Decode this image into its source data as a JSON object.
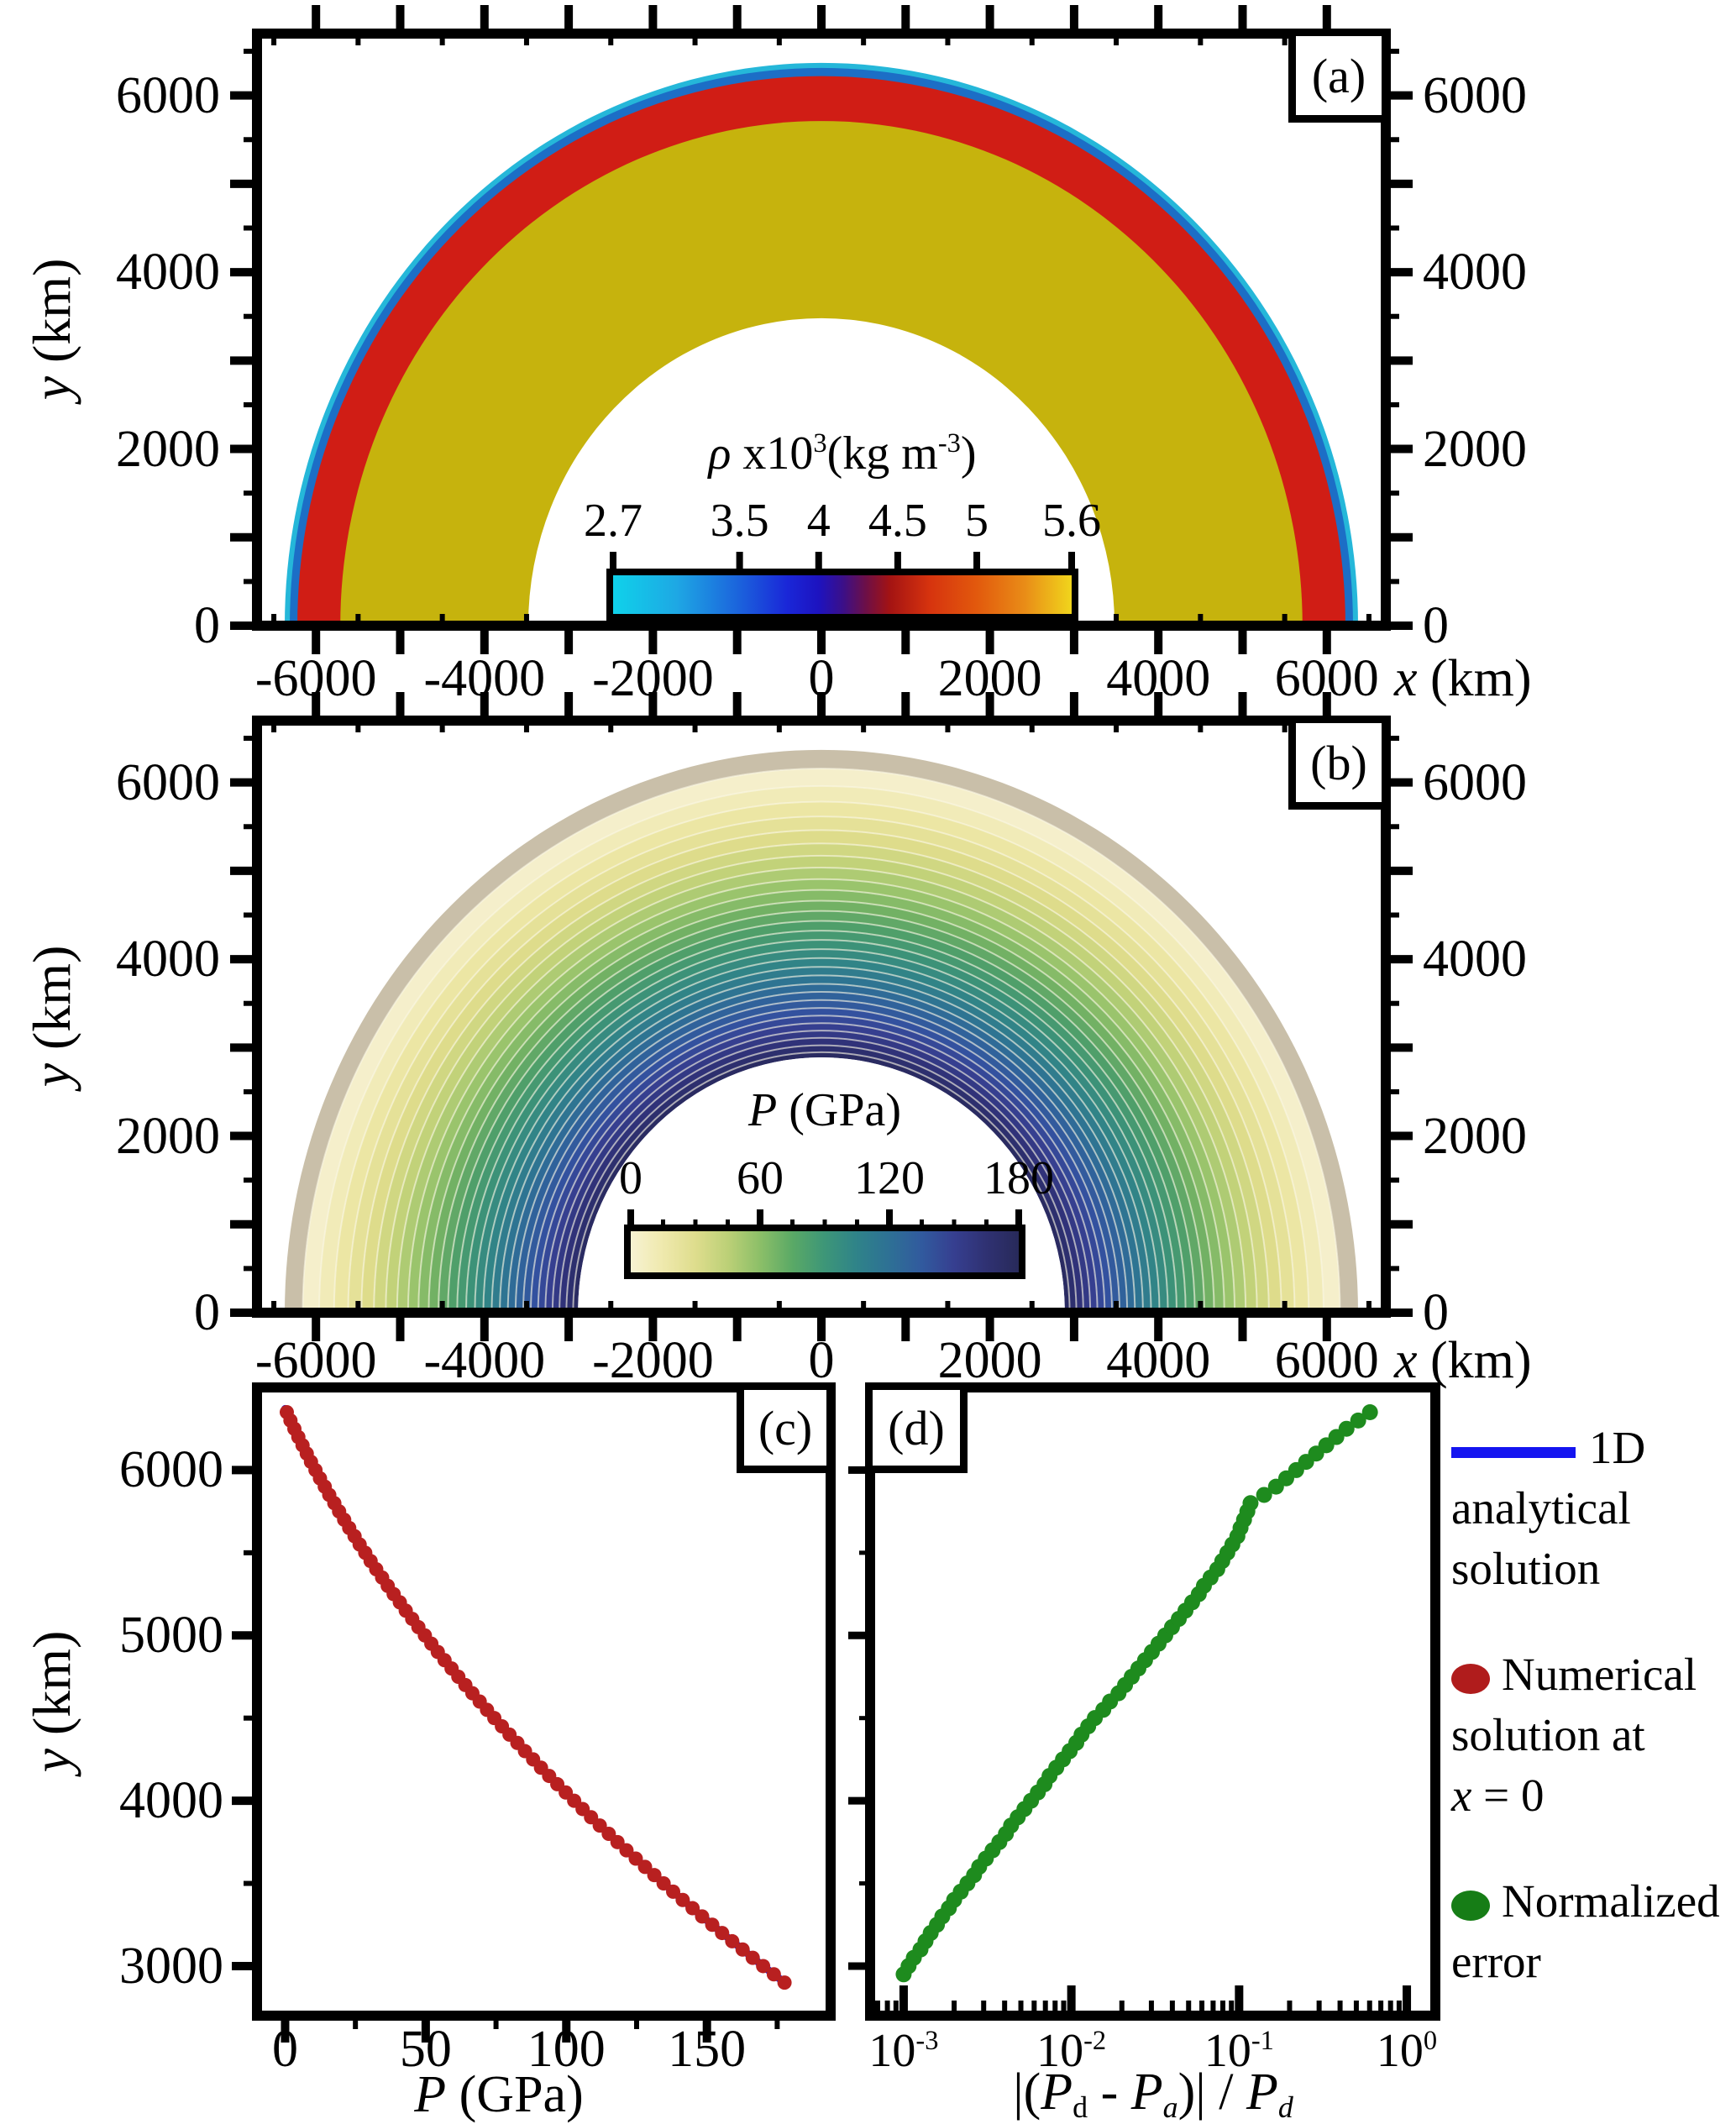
{
  "figure": {
    "bg": "#ffffff",
    "ink": "#000000"
  },
  "panel_a": {
    "label": "(a)",
    "ylabel": [
      [
        "y",
        "i"
      ],
      [
        " (km)",
        "n"
      ]
    ],
    "xlabel": [
      [
        "x",
        "i"
      ],
      [
        " (km)",
        "n"
      ]
    ],
    "x_ticks": {
      "label_values": [
        -6000,
        -4000,
        -2000,
        0,
        2000,
        4000,
        6000
      ],
      "labels": [
        "-6000",
        "-4000",
        "-2000",
        "0",
        "2000",
        "4000",
        "6000"
      ]
    },
    "y_ticks": {
      "label_values": [
        0,
        2000,
        4000,
        6000
      ],
      "labels": [
        "0",
        "2000",
        "4000",
        "6000"
      ]
    },
    "colorbar": {
      "title": [
        [
          "ρ",
          "i"
        ],
        [
          " x10",
          "n"
        ],
        [
          "3",
          "sup"
        ],
        [
          "(kg m",
          "n"
        ],
        [
          "-3",
          "sup"
        ],
        [
          ")",
          "n"
        ]
      ],
      "min": 2.7,
      "max": 5.6,
      "tick_values": [
        2.7,
        3.5,
        4,
        4.5,
        5,
        5.6
      ],
      "tick_labels": [
        "2.7",
        "3.5",
        "4",
        "4.5",
        "5",
        "5.6"
      ],
      "gradient": [
        [
          0,
          "#0fd2ea"
        ],
        [
          13.8,
          "#1ea8e4"
        ],
        [
          27.6,
          "#1b62dc"
        ],
        [
          37.9,
          "#1a27d8"
        ],
        [
          44.8,
          "#1d13c0"
        ],
        [
          50,
          "#3a0f8a"
        ],
        [
          55.2,
          "#6e0f46"
        ],
        [
          60.3,
          "#a31313"
        ],
        [
          69,
          "#d6330e"
        ],
        [
          79.3,
          "#e2590d"
        ],
        [
          89.7,
          "#e98c17"
        ],
        [
          100,
          "#f0d51c"
        ]
      ]
    },
    "layers": [
      {
        "density": 2.7,
        "r_outer": 6371,
        "r_inner": 6311,
        "color": "#25b7d9"
      },
      {
        "density": 3.5,
        "r_outer": 6311,
        "r_inner": 6221,
        "color": "#1c6ec6"
      },
      {
        "density": 4.5,
        "r_outer": 6221,
        "r_inner": 5711,
        "color": "#d01d15"
      },
      {
        "density": 5.6,
        "r_outer": 5711,
        "r_inner": 3480,
        "color": "#c6b30d"
      }
    ]
  },
  "panel_b": {
    "label": "(b)",
    "ylabel": [
      [
        "y",
        "i"
      ],
      [
        " (km)",
        "n"
      ]
    ],
    "xlabel": [
      [
        "x",
        "i"
      ],
      [
        " (km)",
        "n"
      ]
    ],
    "x_ticks": {
      "label_values": [
        -6000,
        -4000,
        -2000,
        0,
        2000,
        4000,
        6000
      ],
      "labels": [
        "-6000",
        "-4000",
        "-2000",
        "0",
        "2000",
        "4000",
        "6000"
      ]
    },
    "y_ticks": {
      "label_values": [
        0,
        2000,
        4000,
        6000
      ],
      "labels": [
        "0",
        "2000",
        "4000",
        "6000"
      ]
    },
    "colorbar": {
      "title": [
        [
          "P",
          "i"
        ],
        [
          " (GPa)",
          "n"
        ]
      ],
      "min": 0,
      "max": 180,
      "minor_step": 15,
      "tick_values": [
        0,
        60,
        120,
        180
      ],
      "tick_labels": [
        "0",
        "60",
        "120",
        "180"
      ],
      "gradient": [
        [
          0,
          "#f7f2d2"
        ],
        [
          8.3,
          "#efe9ad"
        ],
        [
          16.7,
          "#dedd8d"
        ],
        [
          25,
          "#bcd077"
        ],
        [
          33.3,
          "#8cbf68"
        ],
        [
          41.7,
          "#5aa966"
        ],
        [
          50,
          "#3d9678"
        ],
        [
          58.3,
          "#2f8389"
        ],
        [
          66.7,
          "#2e7095"
        ],
        [
          75,
          "#315a9e"
        ],
        [
          83.3,
          "#363f90"
        ],
        [
          91.7,
          "#2f3172"
        ],
        [
          100,
          "#282a5a"
        ]
      ]
    },
    "r_outer": 6371,
    "r_inner": 2890,
    "contour_interval": 6,
    "contour_line_color": "rgba(250,246,228,0.6)",
    "band_colors": [
      [
        0,
        "#c9bfa9"
      ],
      [
        6,
        "#f5efcb"
      ],
      [
        18,
        "#ece6a4"
      ],
      [
        30,
        "#dedc8b"
      ],
      [
        42,
        "#c2d279"
      ],
      [
        54,
        "#9ac46c"
      ],
      [
        66,
        "#72b164"
      ],
      [
        78,
        "#4f9f6a"
      ],
      [
        90,
        "#3c9278"
      ],
      [
        102,
        "#318487"
      ],
      [
        114,
        "#2e7492"
      ],
      [
        126,
        "#30629b"
      ],
      [
        138,
        "#33519f"
      ],
      [
        150,
        "#363f90"
      ],
      [
        162,
        "#303279"
      ],
      [
        174,
        "#2a2b62"
      ],
      [
        180,
        "#272a58"
      ]
    ]
  },
  "panel_c": {
    "label": "(c)",
    "ylabel": [
      [
        "y",
        "i"
      ],
      [
        " (km)",
        "n"
      ]
    ],
    "xlabel": [
      [
        "P",
        "i"
      ],
      [
        " (GPa)",
        "n"
      ]
    ],
    "x_ticks": {
      "label_values": [
        0,
        50,
        100,
        150
      ],
      "labels": [
        "0",
        "50",
        "100",
        "150"
      ],
      "minor_values": [
        25,
        75,
        125,
        175
      ]
    },
    "y_ticks": {
      "label_values": [
        3000,
        4000,
        5000,
        6000
      ],
      "labels": [
        "3000",
        "4000",
        "5000",
        "6000"
      ],
      "minor_values": [
        3500,
        4500,
        5500
      ]
    },
    "line_color": "#1515e0",
    "dot_color": "#b82020"
  },
  "panel_d": {
    "label": "(d)",
    "xlabel": [
      [
        "|(",
        "n"
      ],
      [
        "P",
        "i"
      ],
      [
        "d",
        "sub"
      ],
      [
        " - ",
        "n"
      ],
      [
        "P",
        "i"
      ],
      [
        "a",
        "isub"
      ],
      [
        ")| / ",
        "n"
      ],
      [
        "P",
        "i"
      ],
      [
        "d",
        "isub"
      ]
    ],
    "x_ticks": {
      "exponents": [
        -3,
        -2,
        -1,
        0
      ]
    },
    "y_ticks": {
      "major_values": [
        3000,
        4000,
        5000,
        6000
      ],
      "minor_values": [
        3500,
        4500,
        5500
      ]
    },
    "dot_color": "#1e8b1e"
  },
  "legend": {
    "items": [
      {
        "marker": "line",
        "color": "#1414f0",
        "line_texts": [
          "1D",
          "analytical",
          "solution"
        ]
      },
      {
        "marker": "dot",
        "color": "#b01c1c",
        "line_texts": [
          "Numerical",
          "solution at"
        ],
        "last_line": [
          [
            "x",
            "i"
          ],
          [
            " = 0",
            "n"
          ]
        ]
      },
      {
        "marker": "dot",
        "color": "#167d16",
        "line_texts": [
          "Normalized",
          "error"
        ]
      }
    ]
  },
  "chart_data": [
    {
      "id": "a",
      "type": "heatmap",
      "title": "rho x10^3 (kg m^-3)",
      "colorbar_ticks": [
        2.7,
        3.5,
        4,
        4.5,
        5,
        5.6
      ],
      "rings_density_router_rinner": [
        [
          2.7,
          6371,
          6311
        ],
        [
          3.5,
          6311,
          6221
        ],
        [
          4.5,
          6221,
          5711
        ],
        [
          5.6,
          5711,
          3480
        ]
      ]
    },
    {
      "id": "b",
      "type": "heatmap",
      "title": "P (GPa)",
      "range": [
        0,
        180
      ],
      "contour_interval": 6,
      "annulus_r": [
        2890,
        6371
      ],
      "contour_levels": [
        0,
        6,
        12,
        18,
        24,
        30,
        36,
        42,
        48,
        54,
        60,
        66,
        72,
        78,
        84,
        90,
        96,
        102,
        108,
        114,
        120,
        126,
        132,
        138,
        144,
        150,
        156,
        162,
        168,
        174,
        180
      ]
    },
    {
      "id": "c",
      "type": "line+scatter",
      "xlabel": "P (GPa)",
      "ylabel": "y (km)",
      "xlim": [
        -10,
        194
      ],
      "ylim": [
        2700,
        6500
      ],
      "line_ends": [
        [
          0,
          6371
        ],
        [
          178.5,
          2890
        ]
      ],
      "dots": [
        [
          0.6,
          6350
        ],
        [
          1.9,
          6300
        ],
        [
          3.3,
          6250
        ],
        [
          4.7,
          6200
        ],
        [
          6.2,
          6150
        ],
        [
          7.7,
          6100
        ],
        [
          9.2,
          6050
        ],
        [
          10.8,
          6000
        ],
        [
          12.4,
          5950
        ],
        [
          14.1,
          5900
        ],
        [
          15.7,
          5850
        ],
        [
          17.5,
          5800
        ],
        [
          19.2,
          5750
        ],
        [
          21.0,
          5700
        ],
        [
          22.8,
          5650
        ],
        [
          24.7,
          5600
        ],
        [
          26.5,
          5550
        ],
        [
          28.5,
          5500
        ],
        [
          30.4,
          5450
        ],
        [
          32.4,
          5400
        ],
        [
          34.5,
          5350
        ],
        [
          36.5,
          5300
        ],
        [
          38.6,
          5250
        ],
        [
          40.8,
          5200
        ],
        [
          42.9,
          5150
        ],
        [
          45.2,
          5100
        ],
        [
          47.4,
          5050
        ],
        [
          49.7,
          5000
        ],
        [
          52.0,
          4950
        ],
        [
          54.3,
          4900
        ],
        [
          56.7,
          4850
        ],
        [
          59.2,
          4800
        ],
        [
          61.6,
          4750
        ],
        [
          64.1,
          4700
        ],
        [
          66.6,
          4650
        ],
        [
          69.2,
          4600
        ],
        [
          71.8,
          4550
        ],
        [
          74.4,
          4500
        ],
        [
          77.1,
          4450
        ],
        [
          79.8,
          4400
        ],
        [
          82.6,
          4350
        ],
        [
          85.3,
          4300
        ],
        [
          88.2,
          4250
        ],
        [
          91.0,
          4200
        ],
        [
          93.9,
          4150
        ],
        [
          96.8,
          4100
        ],
        [
          99.8,
          4050
        ],
        [
          102.8,
          4000
        ],
        [
          105.8,
          3950
        ],
        [
          108.8,
          3900
        ],
        [
          111.9,
          3850
        ],
        [
          115.1,
          3800
        ],
        [
          118.2,
          3750
        ],
        [
          121.4,
          3700
        ],
        [
          124.7,
          3650
        ],
        [
          128.0,
          3600
        ],
        [
          131.3,
          3550
        ],
        [
          134.6,
          3500
        ],
        [
          138.0,
          3450
        ],
        [
          141.4,
          3400
        ],
        [
          144.9,
          3350
        ],
        [
          148.3,
          3300
        ],
        [
          151.9,
          3250
        ],
        [
          155.4,
          3200
        ],
        [
          159.0,
          3150
        ],
        [
          162.7,
          3100
        ],
        [
          166.3,
          3050
        ],
        [
          170.0,
          3000
        ],
        [
          173.8,
          2950
        ],
        [
          177.6,
          2900
        ]
      ]
    },
    {
      "id": "d",
      "type": "scatter",
      "xlabel": "|(Pd - Pa)| / Pd",
      "xscale": "log",
      "xlim_log": [
        -3.2,
        0.17
      ],
      "ylim": [
        2700,
        6500
      ],
      "dots": [
        [
          0.001,
          2950
        ],
        [
          0.00107,
          3000
        ],
        [
          0.00115,
          3050
        ],
        [
          0.00126,
          3100
        ],
        [
          0.00135,
          3150
        ],
        [
          0.00145,
          3200
        ],
        [
          0.00158,
          3250
        ],
        [
          0.0017,
          3300
        ],
        [
          0.00186,
          3350
        ],
        [
          0.002,
          3400
        ],
        [
          0.00219,
          3450
        ],
        [
          0.0024,
          3500
        ],
        [
          0.00263,
          3550
        ],
        [
          0.00282,
          3600
        ],
        [
          0.00309,
          3650
        ],
        [
          0.00339,
          3700
        ],
        [
          0.00372,
          3750
        ],
        [
          0.00407,
          3800
        ],
        [
          0.00437,
          3850
        ],
        [
          0.00479,
          3900
        ],
        [
          0.00525,
          3950
        ],
        [
          0.00575,
          4000
        ],
        [
          0.00631,
          4050
        ],
        [
          0.00692,
          4100
        ],
        [
          0.00741,
          4150
        ],
        [
          0.00813,
          4200
        ],
        [
          0.00891,
          4250
        ],
        [
          0.00977,
          4300
        ],
        [
          0.0107,
          4350
        ],
        [
          0.0115,
          4400
        ],
        [
          0.0126,
          4450
        ],
        [
          0.0138,
          4500
        ],
        [
          0.0155,
          4550
        ],
        [
          0.017,
          4600
        ],
        [
          0.0191,
          4650
        ],
        [
          0.0209,
          4700
        ],
        [
          0.0229,
          4750
        ],
        [
          0.0251,
          4800
        ],
        [
          0.0275,
          4850
        ],
        [
          0.0302,
          4900
        ],
        [
          0.0331,
          4950
        ],
        [
          0.0363,
          5000
        ],
        [
          0.0398,
          5050
        ],
        [
          0.0437,
          5100
        ],
        [
          0.0479,
          5150
        ],
        [
          0.0525,
          5200
        ],
        [
          0.0575,
          5250
        ],
        [
          0.0617,
          5300
        ],
        [
          0.0676,
          5350
        ],
        [
          0.0741,
          5400
        ],
        [
          0.0794,
          5450
        ],
        [
          0.0851,
          5500
        ],
        [
          0.0912,
          5550
        ],
        [
          0.0977,
          5600
        ],
        [
          0.102,
          5650
        ],
        [
          0.107,
          5700
        ],
        [
          0.112,
          5750
        ],
        [
          0.117,
          5800
        ],
        [
          0.141,
          5850
        ],
        [
          0.166,
          5900
        ],
        [
          0.191,
          5950
        ],
        [
          0.219,
          6000
        ],
        [
          0.251,
          6050
        ],
        [
          0.288,
          6100
        ],
        [
          0.331,
          6150
        ],
        [
          0.38,
          6200
        ],
        [
          0.437,
          6250
        ],
        [
          0.513,
          6300
        ],
        [
          0.603,
          6350
        ]
      ]
    }
  ]
}
